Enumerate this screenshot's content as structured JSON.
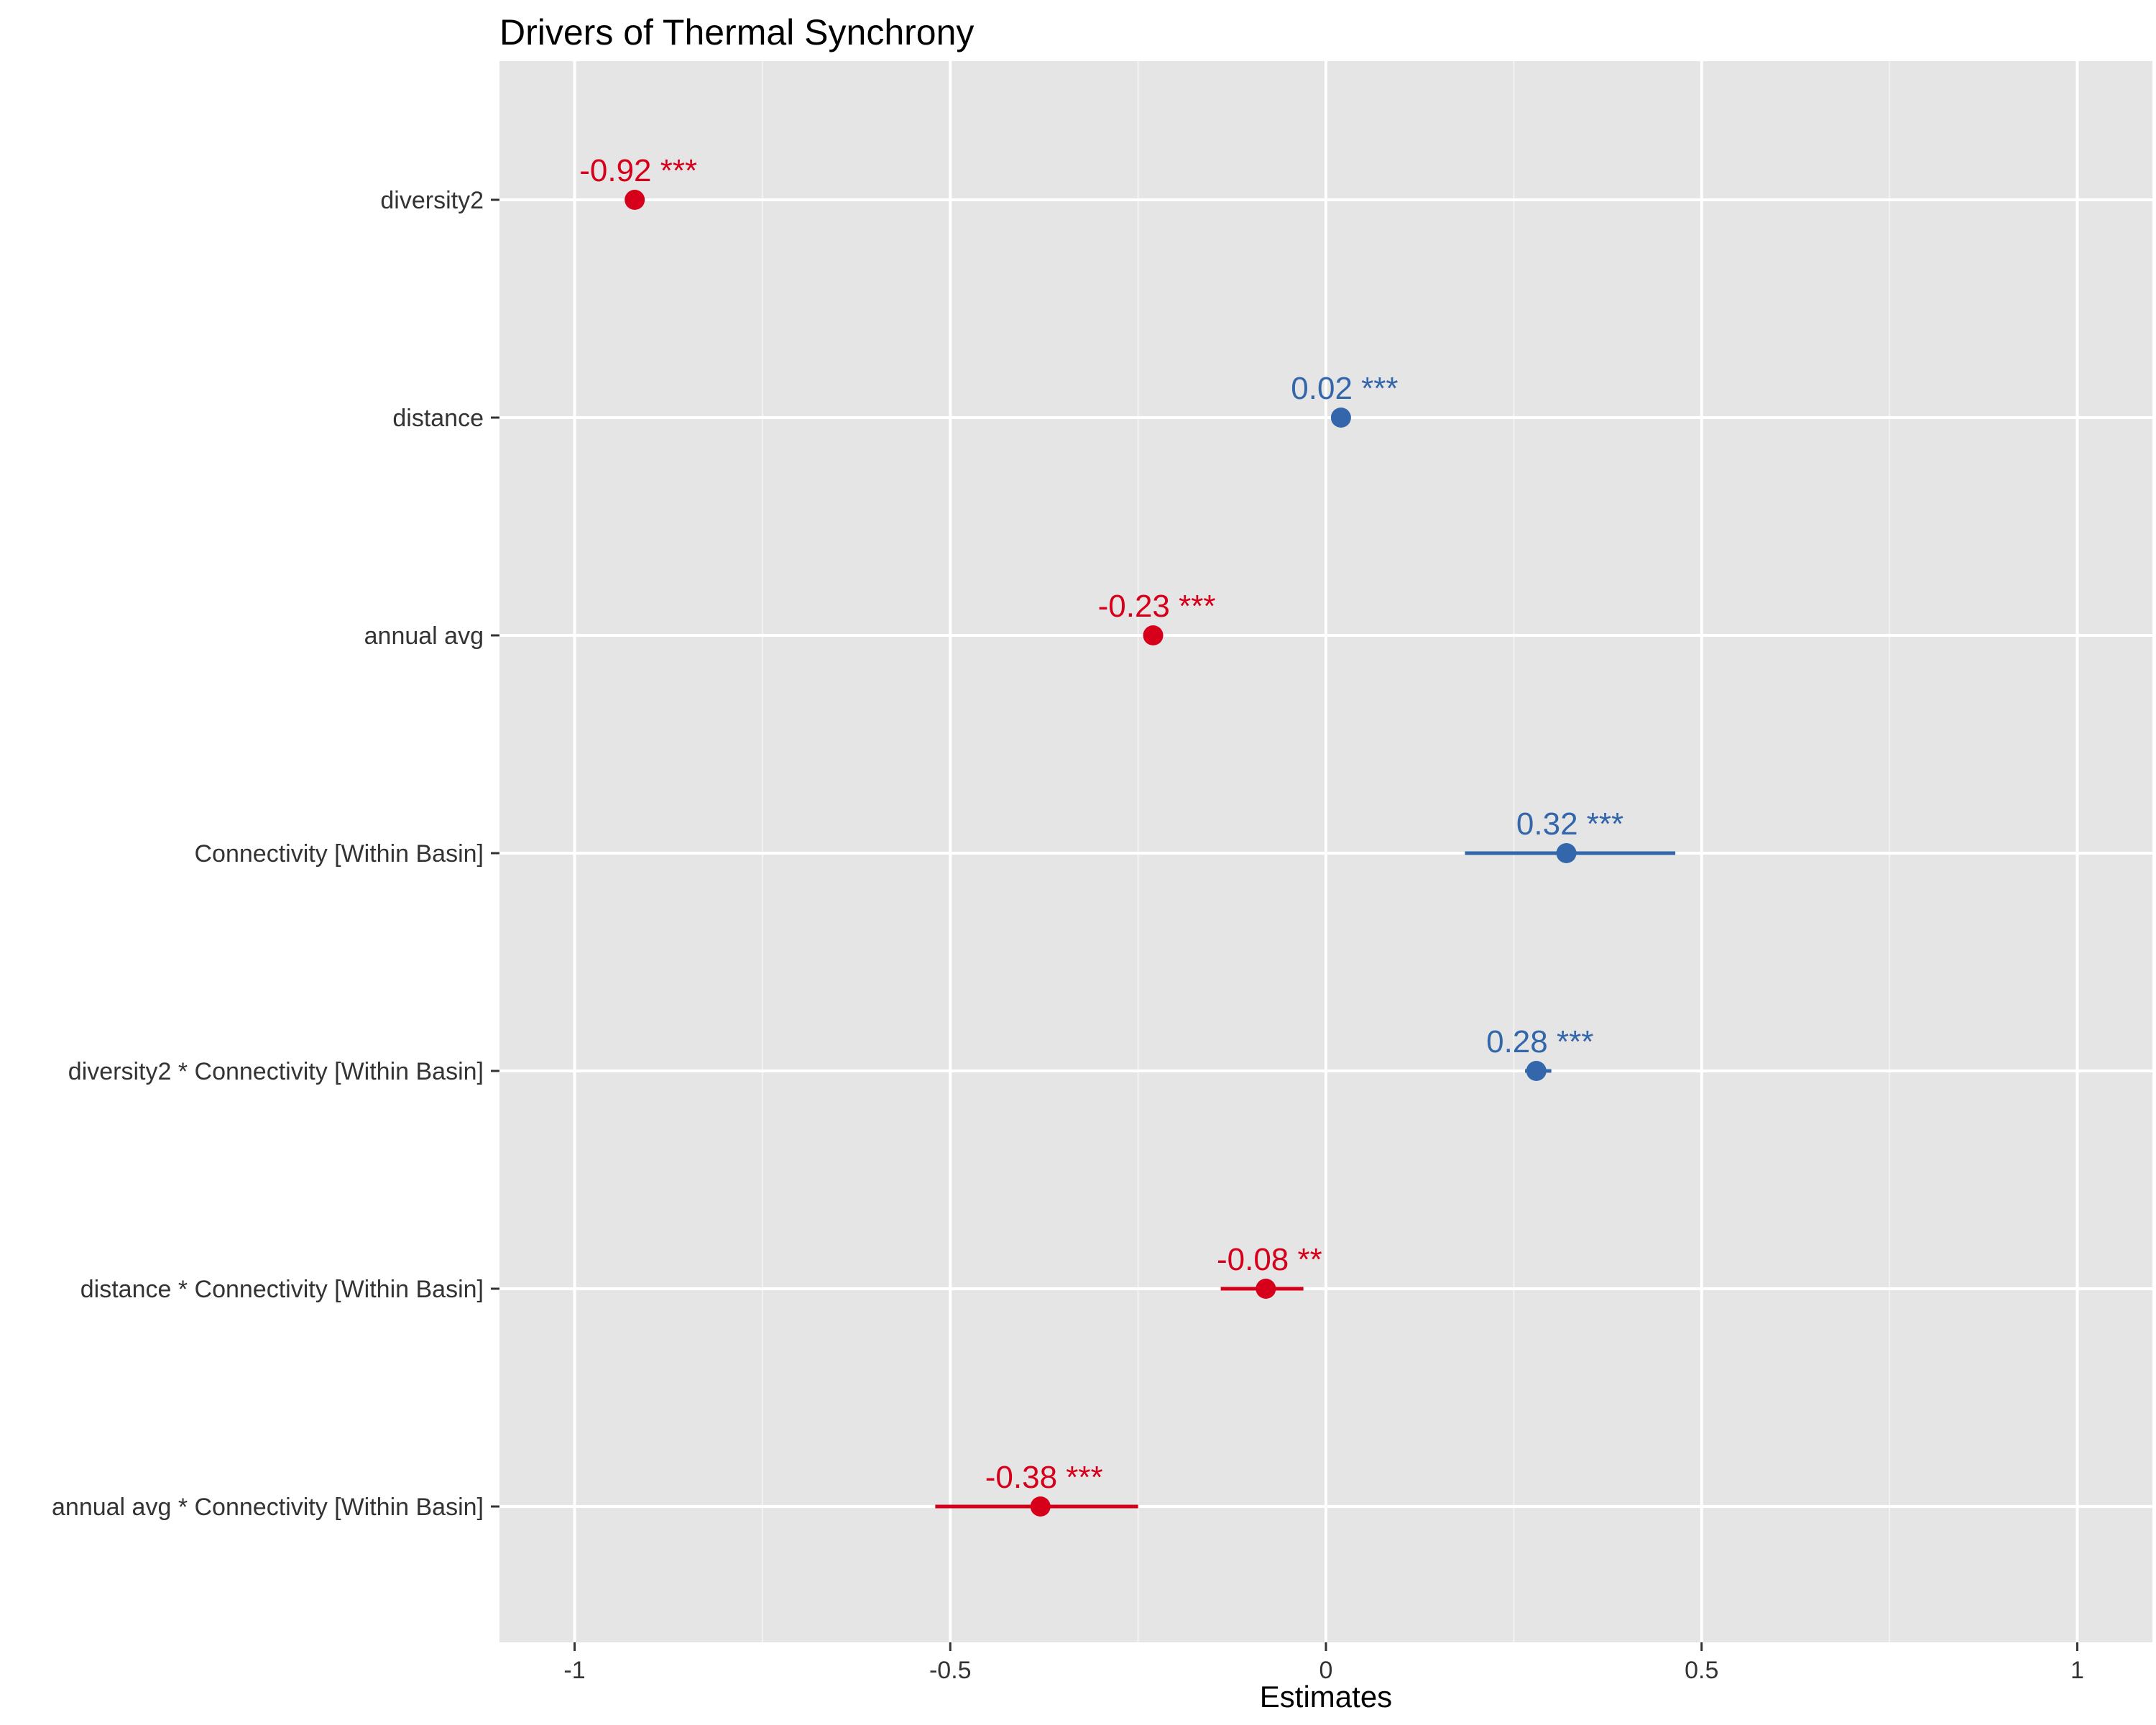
{
  "chart_data": {
    "type": "scatter",
    "title": "Drivers of Thermal Synchrony",
    "xlabel": "Estimates",
    "ylabel": "",
    "xlim": [
      -1.1,
      1.1
    ],
    "xticks": [
      -1,
      -0.5,
      0,
      0.5,
      1
    ],
    "xtick_labels": [
      "-1",
      "-0.5",
      "0",
      "0.5",
      "1"
    ],
    "grid": true,
    "colors": {
      "positive": "#3366aa",
      "negative": "#d7001b",
      "panel": "#e5e5e5",
      "grid": "#ffffff"
    },
    "terms": [
      {
        "term": "diversity2",
        "estimate": -0.92,
        "ci_low": -0.925,
        "ci_high": -0.915,
        "label": "-0.92 ***"
      },
      {
        "term": "distance",
        "estimate": 0.02,
        "ci_low": 0.018,
        "ci_high": 0.026,
        "label": "0.02 ***"
      },
      {
        "term": "annual avg",
        "estimate": -0.23,
        "ci_low": -0.24,
        "ci_high": -0.225,
        "label": "-0.23 ***"
      },
      {
        "term": "Connectivity [Within Basin]",
        "estimate": 0.32,
        "ci_low": 0.185,
        "ci_high": 0.465,
        "label": "0.32 ***"
      },
      {
        "term": "diversity2 * Connectivity [Within Basin]",
        "estimate": 0.28,
        "ci_low": 0.265,
        "ci_high": 0.3,
        "label": "0.28 ***"
      },
      {
        "term": "distance * Connectivity [Within Basin]",
        "estimate": -0.08,
        "ci_low": -0.14,
        "ci_high": -0.03,
        "label": "-0.08 **"
      },
      {
        "term": "annual avg * Connectivity [Within Basin]",
        "estimate": -0.38,
        "ci_low": -0.52,
        "ci_high": -0.25,
        "label": "-0.38 ***"
      }
    ]
  }
}
